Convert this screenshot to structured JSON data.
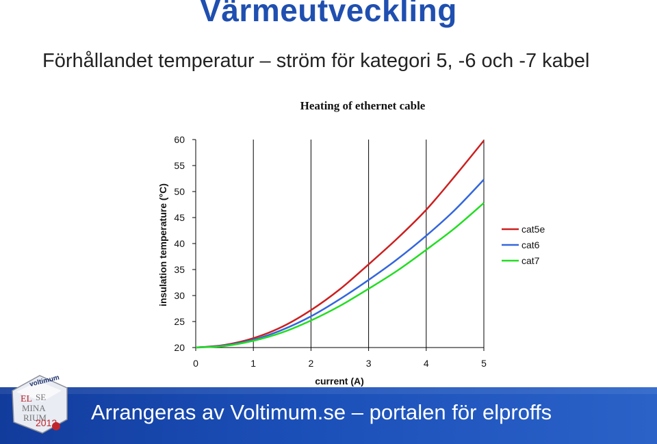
{
  "slide": {
    "title": "Värmeutveckling",
    "subtitle": "Förhållandet temperatur – ström för kategori 5, -6 och -7 kabel",
    "footer": "Arrangeras av Voltimum.se – portalen för elproffs",
    "logo_text": {
      "brand": "voltimum",
      "line1": "ELSE",
      "line2": "MINA",
      "line3": "RIUM",
      "year": "2012"
    }
  },
  "colors": {
    "title": "#1f4fb0",
    "footer_band": "#1b4fb8",
    "cat5e": "#cc1f1f",
    "cat6": "#3366dd",
    "cat7": "#22dd22"
  },
  "chart_data": {
    "type": "line",
    "title": "Heating of ethernet cable",
    "xlabel": "current (A)",
    "ylabel": "insulation temperature (°C)",
    "xlim": [
      0,
      5
    ],
    "ylim": [
      20,
      60
    ],
    "xticks": [
      0,
      1,
      2,
      3,
      4,
      5
    ],
    "yticks": [
      20,
      25,
      30,
      35,
      40,
      45,
      50,
      55,
      60
    ],
    "grid": "vertical",
    "legend": "right",
    "series": [
      {
        "name": "cat5e",
        "x": [
          0,
          0.5,
          1,
          1.5,
          2,
          2.5,
          3,
          3.5,
          4,
          4.5,
          5
        ],
        "y": [
          20,
          20.5,
          21.8,
          24.0,
          27.2,
          31.2,
          36.0,
          41.0,
          46.5,
          53.0,
          59.8
        ]
      },
      {
        "name": "cat6",
        "x": [
          0,
          0.5,
          1,
          1.5,
          2,
          2.5,
          3,
          3.5,
          4,
          4.5,
          5
        ],
        "y": [
          20,
          20.4,
          21.5,
          23.4,
          26.0,
          29.3,
          33.0,
          37.0,
          41.5,
          46.5,
          52.3
        ]
      },
      {
        "name": "cat7",
        "x": [
          0,
          0.5,
          1,
          1.5,
          2,
          2.5,
          3,
          3.5,
          4,
          4.5,
          5
        ],
        "y": [
          20,
          20.3,
          21.3,
          22.9,
          25.2,
          28.0,
          31.3,
          34.8,
          38.8,
          43.0,
          47.8
        ]
      }
    ]
  }
}
